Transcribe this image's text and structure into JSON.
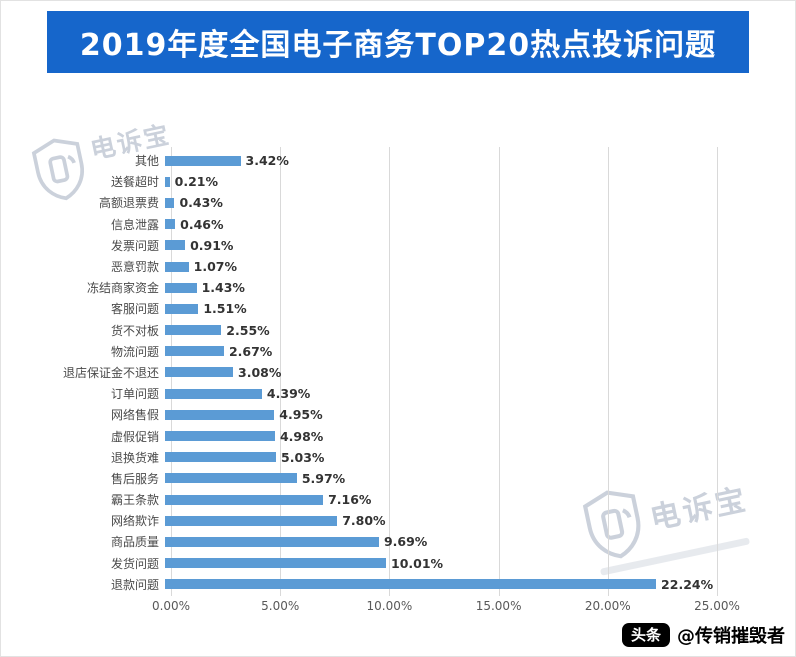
{
  "banner": {
    "title": "2019年度全国电子商务TOP20热点投诉问题"
  },
  "chart_data": {
    "type": "bar",
    "orientation": "horizontal",
    "title": "2019年度全国电子商务TOP20热点投诉问题",
    "categories": [
      "其他",
      "送餐超时",
      "高额退票费",
      "信息泄露",
      "发票问题",
      "恶意罚款",
      "冻结商家资金",
      "客服问题",
      "货不对板",
      "物流问题",
      "退店保证金不退还",
      "订单问题",
      "网络售假",
      "虚假促销",
      "退换货难",
      "售后服务",
      "霸王条款",
      "网络欺诈",
      "商品质量",
      "发货问题",
      "退款问题"
    ],
    "values": [
      3.42,
      0.21,
      0.43,
      0.46,
      0.91,
      1.07,
      1.43,
      1.51,
      2.55,
      2.67,
      3.08,
      4.39,
      4.95,
      4.98,
      5.03,
      5.97,
      7.16,
      7.8,
      9.69,
      10.01,
      22.24
    ],
    "value_labels": [
      "3.42%",
      "0.21%",
      "0.43%",
      "0.46%",
      "0.91%",
      "1.07%",
      "1.43%",
      "1.51%",
      "2.55%",
      "2.67%",
      "3.08%",
      "4.39%",
      "4.95%",
      "4.98%",
      "5.03%",
      "5.97%",
      "7.16%",
      "7.80%",
      "9.69%",
      "10.01%",
      "22.24%"
    ],
    "x_ticks": [
      "0.00%",
      "5.00%",
      "10.00%",
      "15.00%",
      "20.00%",
      "25.00%"
    ],
    "xlim": [
      0,
      25
    ],
    "bar_color": "#5b9bd5",
    "grid": true,
    "legend": false
  },
  "watermark": {
    "brand": "电诉宝"
  },
  "footer": {
    "badge": "头条",
    "handle": "@传销摧毁者"
  },
  "colors": {
    "banner_blue": "#1666cb",
    "bar_blue": "#5b9bd5",
    "grid_gray": "#d9d9d9",
    "watermark_gray": "#c6cdd8",
    "badge_black": "#000000"
  }
}
